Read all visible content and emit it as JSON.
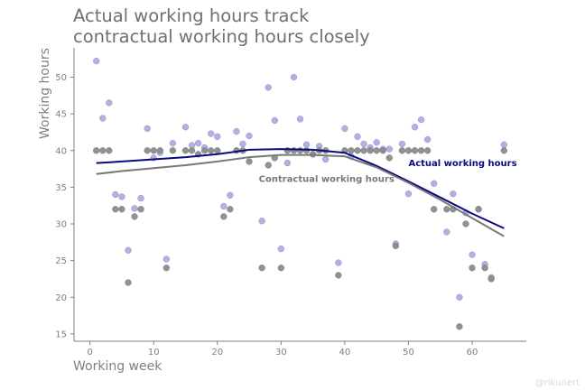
{
  "title": "Actual working hours track\ncontractual working hours closely",
  "credit": "@rikunert",
  "chart_data": {
    "type": "scatter",
    "xlabel": "Working week",
    "ylabel": "Working hours",
    "xlim": [
      -2.5,
      68.5
    ],
    "ylim": [
      14,
      54
    ],
    "xticks": [
      0,
      10,
      20,
      30,
      40,
      50,
      60
    ],
    "yticks": [
      15,
      20,
      25,
      30,
      35,
      40,
      45,
      50
    ],
    "grid": false,
    "series": [
      {
        "name": "Actual working hours",
        "color": "#0a0a80",
        "point_color": "#a4a4dc",
        "points": [
          [
            1,
            52.2
          ],
          [
            2,
            44.4
          ],
          [
            3,
            46.5
          ],
          [
            4,
            34
          ],
          [
            5,
            33.7
          ],
          [
            6,
            26.4
          ],
          [
            7,
            32.1
          ],
          [
            8,
            33.5
          ],
          [
            9,
            43
          ],
          [
            10,
            39
          ],
          [
            11,
            39.7
          ],
          [
            12,
            25.2
          ],
          [
            13,
            41
          ],
          [
            15,
            43.2
          ],
          [
            16,
            40.7
          ],
          [
            17,
            41
          ],
          [
            18,
            40.4
          ],
          [
            19,
            42.3
          ],
          [
            20,
            41.9
          ],
          [
            21,
            32.4
          ],
          [
            22,
            33.9
          ],
          [
            23,
            42.6
          ],
          [
            24,
            40.9
          ],
          [
            25,
            42
          ],
          [
            27,
            30.4
          ],
          [
            28,
            48.6
          ],
          [
            29,
            44.1
          ],
          [
            30,
            26.6
          ],
          [
            31,
            38.3
          ],
          [
            32,
            50
          ],
          [
            33,
            44.3
          ],
          [
            34,
            40.8
          ],
          [
            35,
            39.5
          ],
          [
            36,
            40.6
          ],
          [
            37,
            38.8
          ],
          [
            39,
            24.7
          ],
          [
            40,
            43
          ],
          [
            41,
            39.2
          ],
          [
            42,
            41.9
          ],
          [
            43,
            40.9
          ],
          [
            44,
            40.4
          ],
          [
            45,
            41.1
          ],
          [
            46,
            40.2
          ],
          [
            47,
            40.2
          ],
          [
            48,
            27.3
          ],
          [
            49,
            40.9
          ],
          [
            50,
            34.1
          ],
          [
            51,
            43.2
          ],
          [
            52,
            44.2
          ],
          [
            53,
            41.5
          ],
          [
            54,
            35.5
          ],
          [
            56,
            28.9
          ],
          [
            57,
            34.1
          ],
          [
            58,
            20
          ],
          [
            59,
            31.5
          ],
          [
            60,
            25.8
          ],
          [
            61,
            32
          ],
          [
            62,
            24.5
          ],
          [
            63,
            22.7
          ],
          [
            65,
            40.8
          ]
        ],
        "trend": [
          [
            1,
            38.3
          ],
          [
            5,
            38.5
          ],
          [
            10,
            38.8
          ],
          [
            15,
            39.1
          ],
          [
            20,
            39.5
          ],
          [
            25,
            40.1
          ],
          [
            30,
            40.2
          ],
          [
            35,
            40.1
          ],
          [
            40,
            39.7
          ],
          [
            45,
            37.9
          ],
          [
            50,
            35.8
          ],
          [
            55,
            33.6
          ],
          [
            60,
            31.4
          ],
          [
            65,
            29.4
          ]
        ],
        "label_at": [
          50,
          37.9
        ]
      },
      {
        "name": "Contractual working hours",
        "color": "#787878",
        "point_color": "#8c8c8c",
        "points": [
          [
            1,
            40
          ],
          [
            2,
            40
          ],
          [
            3,
            40
          ],
          [
            4,
            32
          ],
          [
            5,
            32
          ],
          [
            6,
            22
          ],
          [
            7,
            31
          ],
          [
            8,
            32
          ],
          [
            9,
            40
          ],
          [
            10,
            40
          ],
          [
            11,
            40
          ],
          [
            12,
            24
          ],
          [
            13,
            40
          ],
          [
            15,
            40
          ],
          [
            16,
            40
          ],
          [
            17,
            39.5
          ],
          [
            18,
            40
          ],
          [
            19,
            40
          ],
          [
            20,
            40
          ],
          [
            21,
            31
          ],
          [
            22,
            32
          ],
          [
            23,
            40
          ],
          [
            24,
            40
          ],
          [
            25,
            38.5
          ],
          [
            27,
            24
          ],
          [
            28,
            38
          ],
          [
            29,
            39
          ],
          [
            30,
            24
          ],
          [
            31,
            40
          ],
          [
            32,
            40
          ],
          [
            33,
            40
          ],
          [
            34,
            40
          ],
          [
            35,
            39.5
          ],
          [
            36,
            40
          ],
          [
            37,
            40
          ],
          [
            39,
            23
          ],
          [
            40,
            40
          ],
          [
            41,
            40
          ],
          [
            42,
            40
          ],
          [
            43,
            40
          ],
          [
            44,
            40
          ],
          [
            45,
            40
          ],
          [
            46,
            40
          ],
          [
            47,
            39
          ],
          [
            48,
            27
          ],
          [
            49,
            40
          ],
          [
            50,
            40
          ],
          [
            51,
            40
          ],
          [
            52,
            40
          ],
          [
            53,
            40
          ],
          [
            54,
            32
          ],
          [
            56,
            32
          ],
          [
            57,
            32
          ],
          [
            58,
            16
          ],
          [
            59,
            30
          ],
          [
            60,
            24
          ],
          [
            61,
            32
          ],
          [
            62,
            24
          ],
          [
            63,
            22.5
          ],
          [
            65,
            40
          ]
        ],
        "trend": [
          [
            1,
            36.8
          ],
          [
            5,
            37.2
          ],
          [
            10,
            37.6
          ],
          [
            15,
            38
          ],
          [
            20,
            38.5
          ],
          [
            25,
            39.1
          ],
          [
            30,
            39.4
          ],
          [
            35,
            39.4
          ],
          [
            40,
            39.2
          ],
          [
            45,
            37.7
          ],
          [
            50,
            35.6
          ],
          [
            55,
            33.3
          ],
          [
            60,
            30.8
          ],
          [
            65,
            28.3
          ]
        ],
        "label_at": [
          26.5,
          35.7
        ]
      }
    ]
  }
}
